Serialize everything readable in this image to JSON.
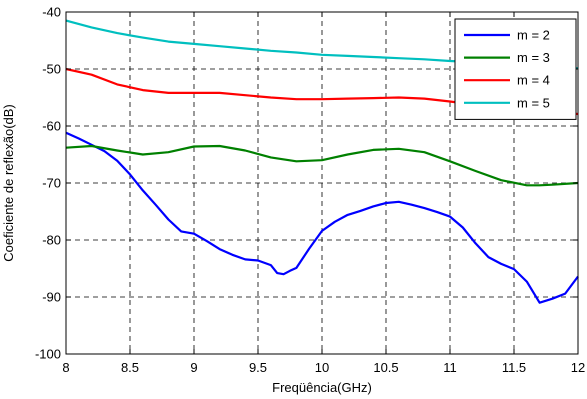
{
  "chart_data": {
    "type": "line",
    "xlabel": "Freqüência(GHz)",
    "ylabel": "Coeficiente de reflexão(dB)",
    "xlim": [
      8,
      12
    ],
    "ylim": [
      -100,
      -40
    ],
    "xticks": [
      8,
      8.5,
      9,
      9.5,
      10,
      10.5,
      11,
      11.5,
      12
    ],
    "xtick_labels": [
      "8",
      "8.5",
      "9",
      "9.5",
      "10",
      "10.5",
      "11",
      "11.5",
      "12"
    ],
    "yticks": [
      -100,
      -90,
      -80,
      -70,
      -60,
      -50,
      -40
    ],
    "ytick_labels": [
      "-100",
      "-90",
      "-80",
      "-70",
      "-60",
      "-50",
      "-40"
    ],
    "grid": true,
    "grid_style": "dashed",
    "legend_position": "top-right",
    "series": [
      {
        "name": "m = 2",
        "color": "#0000ff",
        "x": [
          8.0,
          8.1,
          8.2,
          8.3,
          8.4,
          8.5,
          8.6,
          8.7,
          8.8,
          8.9,
          9.0,
          9.1,
          9.2,
          9.3,
          9.4,
          9.5,
          9.6,
          9.65,
          9.7,
          9.75,
          9.8,
          9.9,
          10.0,
          10.1,
          10.2,
          10.3,
          10.4,
          10.5,
          10.6,
          10.7,
          10.8,
          10.9,
          11.0,
          11.1,
          11.2,
          11.3,
          11.4,
          11.5,
          11.6,
          11.7,
          11.8,
          11.9,
          12.0
        ],
        "y": [
          -61.2,
          -62.2,
          -63.3,
          -64.4,
          -66.1,
          -68.5,
          -71.3,
          -73.8,
          -76.4,
          -78.5,
          -78.9,
          -80.2,
          -81.6,
          -82.6,
          -83.4,
          -83.6,
          -84.4,
          -85.8,
          -86.0,
          -85.4,
          -84.9,
          -81.5,
          -78.4,
          -76.8,
          -75.6,
          -74.9,
          -74.1,
          -73.5,
          -73.3,
          -73.8,
          -74.4,
          -75.1,
          -75.9,
          -77.8,
          -80.6,
          -83.0,
          -84.2,
          -85.1,
          -87.3,
          -91.0,
          -90.3,
          -89.4,
          -86.4
        ]
      },
      {
        "name": "m = 3",
        "color": "#008000",
        "x": [
          8.0,
          8.2,
          8.4,
          8.6,
          8.8,
          9.0,
          9.2,
          9.4,
          9.6,
          9.8,
          10.0,
          10.2,
          10.4,
          10.6,
          10.8,
          11.0,
          11.2,
          11.4,
          11.6,
          11.7,
          11.8,
          12.0
        ],
        "y": [
          -63.8,
          -63.5,
          -64.3,
          -65.0,
          -64.6,
          -63.6,
          -63.5,
          -64.3,
          -65.5,
          -66.2,
          -66.0,
          -65.0,
          -64.2,
          -64.0,
          -64.6,
          -66.2,
          -67.9,
          -69.5,
          -70.4,
          -70.4,
          -70.3,
          -70.0
        ]
      },
      {
        "name": "m = 4",
        "color": "#ff0000",
        "x": [
          8.0,
          8.2,
          8.4,
          8.6,
          8.8,
          9.0,
          9.2,
          9.4,
          9.6,
          9.8,
          10.0,
          10.2,
          10.4,
          10.6,
          10.8,
          11.0,
          11.2,
          11.4,
          11.6,
          11.8,
          12.0
        ],
        "y": [
          -50.0,
          -51.0,
          -52.7,
          -53.7,
          -54.2,
          -54.2,
          -54.2,
          -54.6,
          -55.0,
          -55.3,
          -55.3,
          -55.2,
          -55.1,
          -55.0,
          -55.2,
          -55.7,
          -56.3,
          -56.9,
          -57.2,
          -57.5,
          -57.9
        ]
      },
      {
        "name": "m = 5",
        "color": "#00bfbf",
        "x": [
          8.0,
          8.2,
          8.4,
          8.6,
          8.8,
          9.0,
          9.2,
          9.4,
          9.6,
          9.8,
          10.0,
          10.2,
          10.4,
          10.6,
          10.8,
          11.0,
          11.2,
          11.4,
          11.6,
          11.8,
          12.0
        ],
        "y": [
          -41.5,
          -42.7,
          -43.7,
          -44.5,
          -45.2,
          -45.6,
          -46.0,
          -46.4,
          -46.8,
          -47.1,
          -47.5,
          -47.7,
          -47.9,
          -48.1,
          -48.3,
          -48.6,
          -48.8,
          -49.0,
          -49.3,
          -49.6,
          -49.9
        ]
      }
    ]
  }
}
